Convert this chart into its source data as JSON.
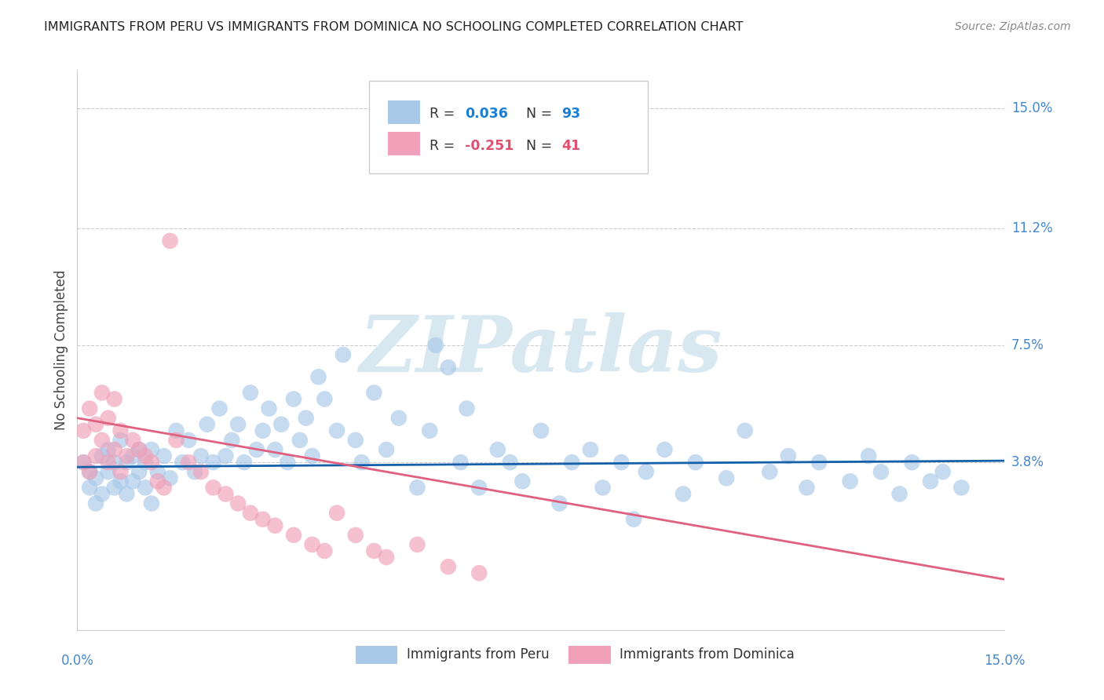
{
  "title": "IMMIGRANTS FROM PERU VS IMMIGRANTS FROM DOMINICA NO SCHOOLING COMPLETED CORRELATION CHART",
  "source": "Source: ZipAtlas.com",
  "ylabel": "No Schooling Completed",
  "ytick_labels": [
    "15.0%",
    "11.2%",
    "7.5%",
    "3.8%"
  ],
  "ytick_values": [
    0.15,
    0.112,
    0.075,
    0.038
  ],
  "xtick_left_label": "0.0%",
  "xtick_right_label": "15.0%",
  "xlim": [
    0.0,
    0.15
  ],
  "ylim": [
    -0.015,
    0.162
  ],
  "legend_peru_R": "0.036",
  "legend_peru_N": "93",
  "legend_dom_R": "-0.251",
  "legend_dom_N": "41",
  "peru_color": "#a8c8e8",
  "dominica_color": "#f0a0b8",
  "trendline_peru_color": "#1560a8",
  "trendline_dom_color": "#e06080",
  "background_color": "#ffffff",
  "grid_color": "#cccccc",
  "title_color": "#222222",
  "ylabel_color": "#444444",
  "ytick_color": "#4488cc",
  "xtick_color": "#4488cc",
  "watermark": "ZIPatlas",
  "watermark_color": "#d8e8f0",
  "legend_R_peru_color": "#1a7fd4",
  "legend_N_peru_color": "#1a7fd4",
  "legend_R_dom_color": "#e05070",
  "legend_N_dom_color": "#e05070",
  "peru_x": [
    0.001,
    0.002,
    0.002,
    0.003,
    0.003,
    0.004,
    0.004,
    0.005,
    0.005,
    0.006,
    0.006,
    0.007,
    0.007,
    0.008,
    0.008,
    0.009,
    0.009,
    0.01,
    0.01,
    0.011,
    0.011,
    0.012,
    0.012,
    0.013,
    0.014,
    0.015,
    0.016,
    0.017,
    0.018,
    0.019,
    0.02,
    0.021,
    0.022,
    0.023,
    0.024,
    0.025,
    0.026,
    0.027,
    0.028,
    0.029,
    0.03,
    0.031,
    0.032,
    0.033,
    0.034,
    0.035,
    0.036,
    0.037,
    0.038,
    0.039,
    0.04,
    0.042,
    0.043,
    0.045,
    0.046,
    0.048,
    0.05,
    0.052,
    0.055,
    0.057,
    0.058,
    0.06,
    0.062,
    0.063,
    0.065,
    0.068,
    0.07,
    0.072,
    0.075,
    0.078,
    0.08,
    0.083,
    0.085,
    0.088,
    0.09,
    0.092,
    0.095,
    0.098,
    0.1,
    0.105,
    0.108,
    0.112,
    0.115,
    0.118,
    0.12,
    0.125,
    0.128,
    0.13,
    0.133,
    0.135,
    0.138,
    0.14,
    0.143
  ],
  "peru_y": [
    0.038,
    0.035,
    0.03,
    0.025,
    0.033,
    0.028,
    0.04,
    0.035,
    0.042,
    0.03,
    0.038,
    0.032,
    0.045,
    0.028,
    0.038,
    0.032,
    0.04,
    0.035,
    0.042,
    0.03,
    0.038,
    0.025,
    0.042,
    0.035,
    0.04,
    0.033,
    0.048,
    0.038,
    0.045,
    0.035,
    0.04,
    0.05,
    0.038,
    0.055,
    0.04,
    0.045,
    0.05,
    0.038,
    0.06,
    0.042,
    0.048,
    0.055,
    0.042,
    0.05,
    0.038,
    0.058,
    0.045,
    0.052,
    0.04,
    0.065,
    0.058,
    0.048,
    0.072,
    0.045,
    0.038,
    0.06,
    0.042,
    0.052,
    0.03,
    0.048,
    0.075,
    0.068,
    0.038,
    0.055,
    0.03,
    0.042,
    0.038,
    0.032,
    0.048,
    0.025,
    0.038,
    0.042,
    0.03,
    0.038,
    0.02,
    0.035,
    0.042,
    0.028,
    0.038,
    0.033,
    0.048,
    0.035,
    0.04,
    0.03,
    0.038,
    0.032,
    0.04,
    0.035,
    0.028,
    0.038,
    0.032,
    0.035,
    0.03
  ],
  "dom_x": [
    0.001,
    0.001,
    0.002,
    0.002,
    0.003,
    0.003,
    0.004,
    0.004,
    0.005,
    0.005,
    0.006,
    0.006,
    0.007,
    0.007,
    0.008,
    0.009,
    0.01,
    0.011,
    0.012,
    0.013,
    0.014,
    0.015,
    0.016,
    0.018,
    0.02,
    0.022,
    0.024,
    0.026,
    0.028,
    0.03,
    0.032,
    0.035,
    0.038,
    0.04,
    0.042,
    0.045,
    0.048,
    0.05,
    0.055,
    0.06,
    0.065
  ],
  "dom_y": [
    0.038,
    0.048,
    0.035,
    0.055,
    0.04,
    0.05,
    0.045,
    0.06,
    0.038,
    0.052,
    0.042,
    0.058,
    0.035,
    0.048,
    0.04,
    0.045,
    0.042,
    0.04,
    0.038,
    0.032,
    0.03,
    0.108,
    0.045,
    0.038,
    0.035,
    0.03,
    0.028,
    0.025,
    0.022,
    0.02,
    0.018,
    0.015,
    0.012,
    0.01,
    0.022,
    0.015,
    0.01,
    0.008,
    0.012,
    0.005,
    0.003
  ],
  "trendline_peru_start_y": 0.0365,
  "trendline_peru_end_y": 0.0385,
  "trendline_dom_start_y": 0.052,
  "trendline_dom_end_y": 0.001
}
